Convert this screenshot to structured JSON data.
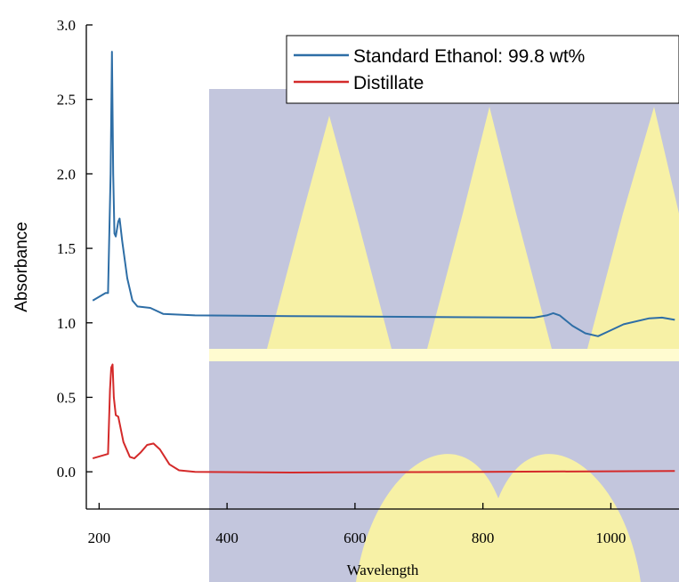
{
  "chart_data": {
    "type": "line",
    "x_label": "Wavelength",
    "y_label": "Absorbance",
    "xlim": [
      180,
      1105
    ],
    "ylim": [
      -0.25,
      3.0
    ],
    "xticks": [
      200,
      400,
      600,
      800,
      1000
    ],
    "yticks": [
      {
        "value": 0,
        "label": "0.0"
      },
      0.5,
      {
        "value": 1,
        "label": "1.0"
      },
      1.5,
      {
        "value": 2,
        "label": "2.0"
      },
      2.5,
      {
        "value": 3,
        "label": "3.0"
      }
    ],
    "series": [
      {
        "name": "Standard Ethanol: 99.8 wt%",
        "color": "#2e6ea6",
        "x": [
          190,
          210,
          214,
          218,
          220,
          222,
          224,
          226,
          230,
          232,
          236,
          244,
          252,
          260,
          280,
          300,
          350,
          500,
          700,
          880,
          900,
          910,
          920,
          940,
          960,
          980,
          1000,
          1020,
          1060,
          1080,
          1100
        ],
        "values": [
          1.15,
          1.2,
          1.2,
          2.0,
          2.82,
          2.0,
          1.6,
          1.58,
          1.68,
          1.7,
          1.55,
          1.3,
          1.15,
          1.11,
          1.1,
          1.06,
          1.05,
          1.045,
          1.04,
          1.035,
          1.05,
          1.065,
          1.05,
          0.98,
          0.93,
          0.91,
          0.95,
          0.99,
          1.03,
          1.035,
          1.02
        ]
      },
      {
        "name": "Distillate",
        "color": "#d42a2a",
        "x": [
          190,
          214,
          217,
          219,
          221,
          223,
          226,
          230,
          238,
          248,
          255,
          265,
          275,
          285,
          295,
          310,
          325,
          350,
          500,
          800,
          1100
        ],
        "values": [
          0.09,
          0.12,
          0.55,
          0.7,
          0.72,
          0.5,
          0.38,
          0.37,
          0.2,
          0.1,
          0.09,
          0.13,
          0.18,
          0.19,
          0.15,
          0.05,
          0.01,
          0.0,
          -0.005,
          0.0,
          0.005
        ]
      }
    ]
  }
}
